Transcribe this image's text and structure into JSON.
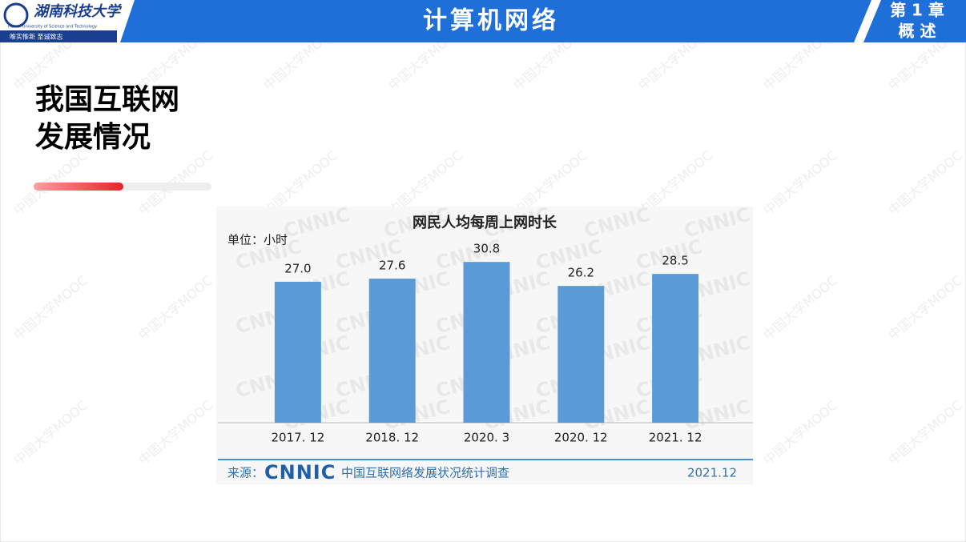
{
  "header": {
    "school": "湖南科技大学",
    "school_en": "Hunan University of Science and Technology",
    "motto": "唯实惟新  至诚致志",
    "course": "计算机网络",
    "chapter": "第 1 章",
    "chapter_title": "概 述"
  },
  "heading": [
    "我国互联网",
    "发展情况"
  ],
  "watermark": "中国大学MOOC",
  "chart_watermark": "CNNIC",
  "chart_data": {
    "type": "bar",
    "title": "网民人均每周上网时长",
    "unit_label": "单位：小时",
    "categories": [
      "2017. 12",
      "2018. 12",
      "2020. 3",
      "2020. 12",
      "2021. 12"
    ],
    "values": [
      27.0,
      27.6,
      30.8,
      26.2,
      28.5
    ],
    "value_labels": [
      "27.0",
      "27.6",
      "30.8",
      "26.2",
      "28.5"
    ],
    "color": "#5b9bd5",
    "source_prefix": "来源：",
    "source_logo": "CNNIC",
    "source_text": "中国互联网络发展状况统计调查",
    "source_date": "2021.12"
  }
}
